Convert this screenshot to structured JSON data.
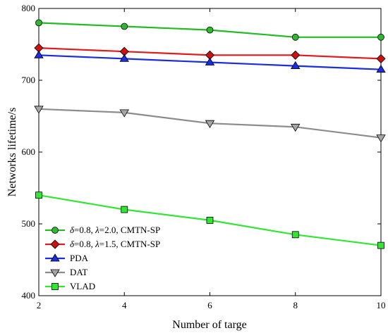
{
  "chart_data": {
    "type": "line",
    "title": "",
    "xlabel": "Number of targe",
    "ylabel": "Networks lifetime/s",
    "x": [
      2,
      4,
      6,
      8,
      10
    ],
    "xlim": [
      2,
      10
    ],
    "ylim": [
      400,
      800
    ],
    "xticks": [
      2,
      4,
      6,
      8,
      10
    ],
    "yticks": [
      400,
      500,
      600,
      700,
      800
    ],
    "grid": false,
    "legend_position": "bottom-left",
    "series": [
      {
        "name": "δ=0.8, λ=2.0, CMTN-SP",
        "legend_parts": [
          "δ",
          "=0.8, ",
          "λ",
          "=2.0, CMTN-SP"
        ],
        "values": [
          780,
          775,
          770,
          760,
          760
        ],
        "line_color": "#22bb22",
        "marker_color": "#2db82d",
        "marker": "circle"
      },
      {
        "name": "δ=0.8, λ=1.5, CMTN-SP",
        "legend_parts": [
          "δ",
          "=0.8, ",
          "λ",
          "=1.5, CMTN-SP"
        ],
        "values": [
          745,
          740,
          735,
          735,
          730
        ],
        "line_color": "#e01b1b",
        "marker_color": "#cc1111",
        "marker": "diamond"
      },
      {
        "name": "PDA",
        "legend_parts": [
          "",
          "PDA",
          "",
          ""
        ],
        "values": [
          735,
          730,
          725,
          720,
          715
        ],
        "line_color": "#1a2ee0",
        "marker_color": "#1a2ee0",
        "marker": "triangle-up"
      },
      {
        "name": "DAT",
        "legend_parts": [
          "",
          "DAT",
          "",
          ""
        ],
        "values": [
          660,
          655,
          640,
          635,
          620
        ],
        "line_color": "#8c8c8c",
        "marker_color": "#a6a6a6",
        "marker": "triangle-down"
      },
      {
        "name": "VLAD",
        "legend_parts": [
          "",
          "VLAD",
          "",
          ""
        ],
        "values": [
          540,
          520,
          505,
          485,
          470
        ],
        "line_color": "#33e633",
        "marker_color": "#33e633",
        "marker": "square"
      }
    ]
  }
}
